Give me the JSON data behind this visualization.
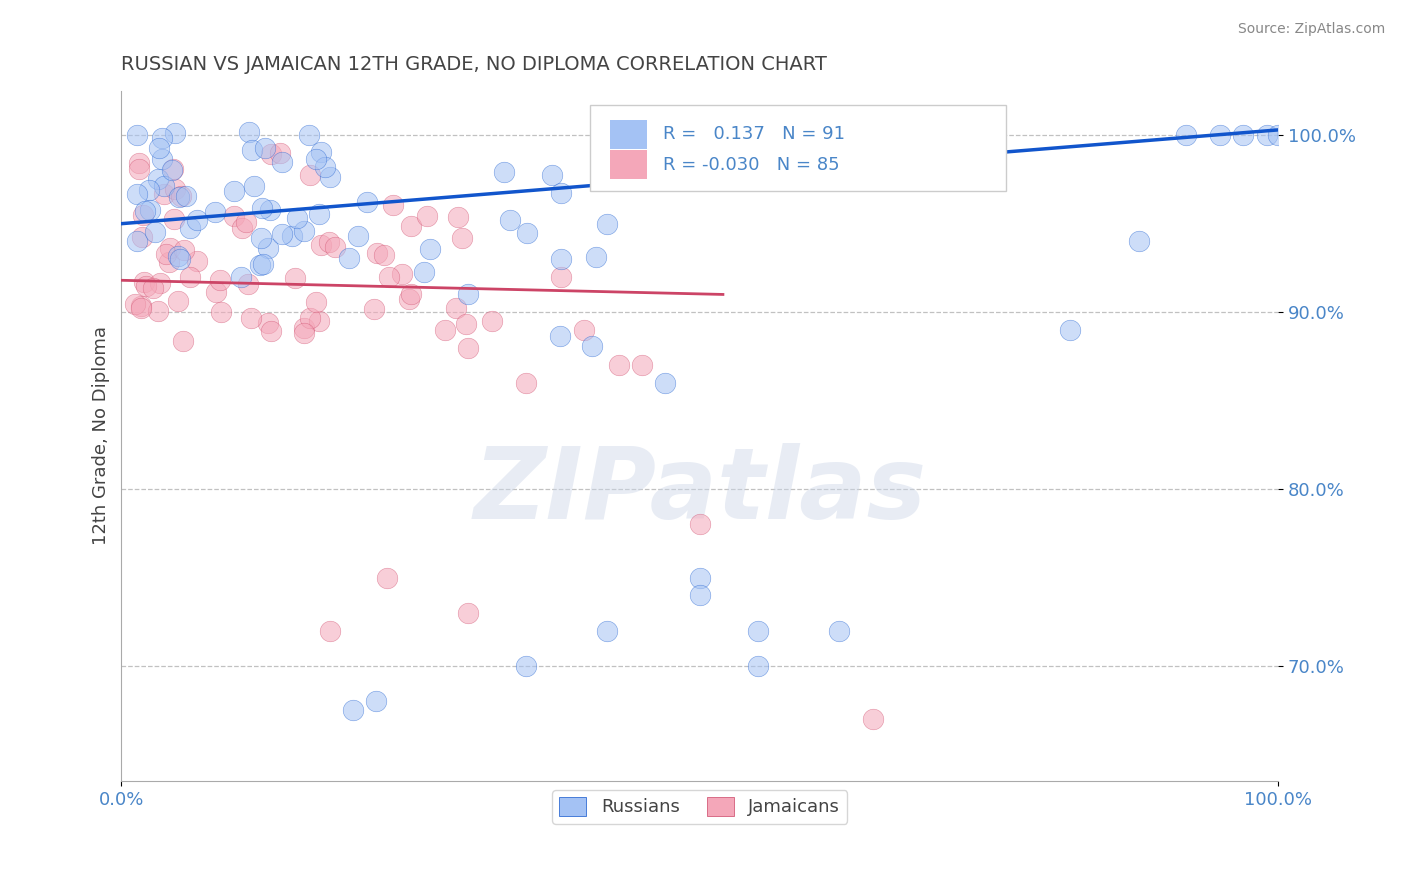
{
  "title": "RUSSIAN VS JAMAICAN 12TH GRADE, NO DIPLOMA CORRELATION CHART",
  "source_text": "Source: ZipAtlas.com",
  "ylabel": "12th Grade, No Diploma",
  "watermark": "ZIPatlas",
  "legend_russian": "Russians",
  "legend_jamaican": "Jamaicans",
  "R_russian": 0.137,
  "N_russian": 91,
  "R_jamaican": -0.03,
  "N_jamaican": 85,
  "xlim": [
    0.0,
    1.0
  ],
  "ylim": [
    0.635,
    1.025
  ],
  "yticks": [
    0.7,
    0.8,
    0.9,
    1.0
  ],
  "ytick_labels": [
    "70.0%",
    "80.0%",
    "90.0%",
    "100.0%"
  ],
  "xtick_labels": [
    "0.0%",
    "100.0%"
  ],
  "color_russian": "#a4c2f4",
  "color_jamaican": "#f4a7b9",
  "color_trendline_russian": "#1155cc",
  "color_trendline_jamaican": "#cc4466",
  "title_color": "#444444",
  "axis_label_color": "#444444",
  "tick_color": "#4a86c8",
  "grid_color": "#bbbbbb",
  "background_color": "#ffffff",
  "trend_russian_x0": 0.0,
  "trend_russian_y0": 0.95,
  "trend_russian_x1": 1.0,
  "trend_russian_y1": 1.003,
  "trend_jamaican_x0": 0.0,
  "trend_jamaican_y0": 0.918,
  "trend_jamaican_x1": 0.52,
  "trend_jamaican_y1": 0.91
}
